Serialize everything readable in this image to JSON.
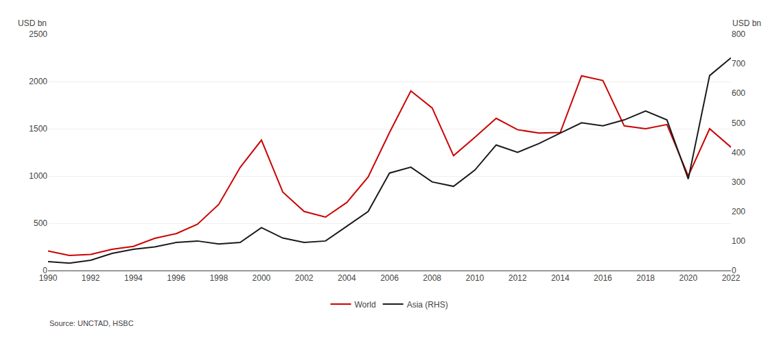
{
  "chart_data": {
    "type": "line",
    "x": [
      1990,
      1991,
      1992,
      1993,
      1994,
      1995,
      1996,
      1997,
      1998,
      1999,
      2000,
      2001,
      2002,
      2003,
      2004,
      2005,
      2006,
      2007,
      2008,
      2009,
      2010,
      2011,
      2012,
      2013,
      2014,
      2015,
      2016,
      2017,
      2018,
      2019,
      2020,
      2021,
      2022
    ],
    "series": [
      {
        "name": "World",
        "color": "#cc0000",
        "values": [
          207,
          160,
          170,
          225,
          255,
          340,
          390,
          490,
          700,
          1090,
          1380,
          830,
          625,
          565,
          720,
          990,
          1460,
          1900,
          1720,
          1215,
          1410,
          1610,
          1490,
          1455,
          1460,
          2060,
          2010,
          1530,
          1500,
          1545,
          1000,
          1500,
          1305
        ]
      },
      {
        "name": "Asia (RHS)",
        "color": "#1a1a1a",
        "axis": "y2",
        "values": [
          30,
          25,
          35,
          58,
          72,
          80,
          95,
          100,
          90,
          95,
          145,
          110,
          95,
          100,
          150,
          200,
          330,
          350,
          300,
          285,
          340,
          425,
          400,
          430,
          465,
          500,
          490,
          510,
          540,
          510,
          310,
          660,
          720
        ]
      }
    ],
    "xlim": [
      1990,
      2022
    ],
    "xticks": [
      1990,
      1992,
      1994,
      1996,
      1998,
      2000,
      2002,
      2004,
      2006,
      2008,
      2010,
      2012,
      2014,
      2016,
      2018,
      2020,
      2022
    ],
    "ylim": [
      0,
      2500
    ],
    "yticks": [
      0,
      500,
      1000,
      1500,
      2000,
      2500
    ],
    "y2lim": [
      0,
      800
    ],
    "y2ticks": [
      0,
      100,
      200,
      300,
      400,
      500,
      600,
      700,
      800
    ],
    "ylabel": "USD bn",
    "y2label": "USD bn",
    "source": "Source: UNCTAD, HSBC",
    "grid": true,
    "legend": "bottom"
  }
}
